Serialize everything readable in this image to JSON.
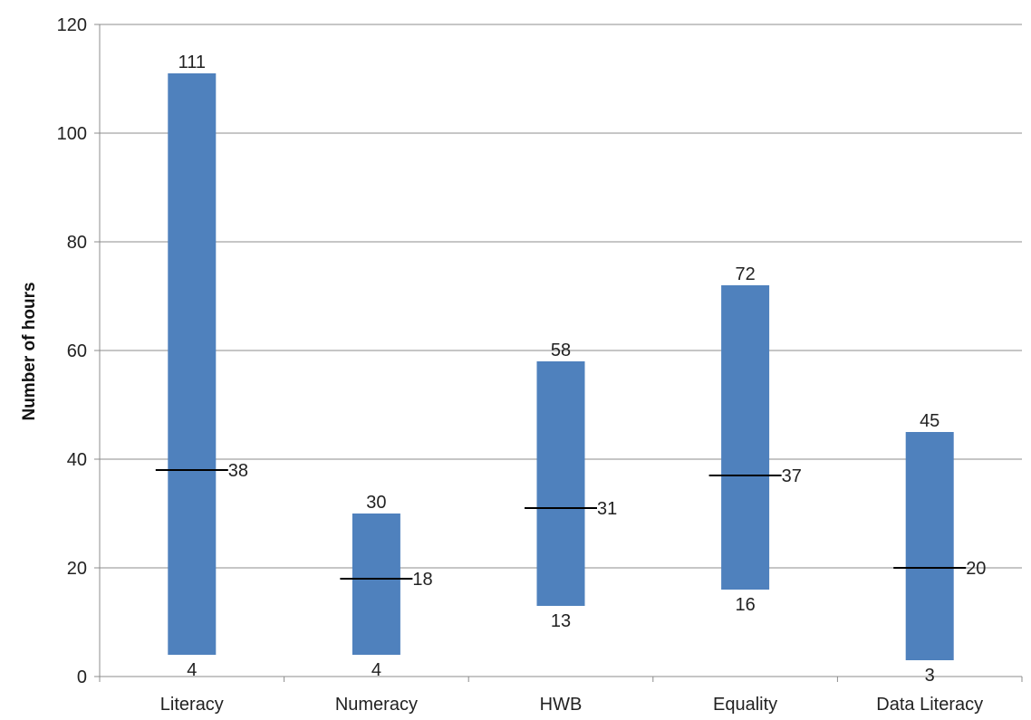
{
  "chart_data": {
    "type": "bar",
    "subtype": "floating-range-with-marker",
    "title": "",
    "xlabel": "",
    "ylabel": "Number of hours",
    "ylim": [
      0,
      120
    ],
    "yticks": [
      0,
      20,
      40,
      60,
      80,
      100,
      120
    ],
    "grid": true,
    "legend": "none",
    "categories": [
      "Literacy",
      "Numeracy",
      "HWB",
      "Equality",
      "Data Literacy"
    ],
    "series": [
      {
        "role": "min",
        "values": [
          4,
          4,
          13,
          16,
          3
        ]
      },
      {
        "role": "max",
        "values": [
          111,
          30,
          58,
          72,
          45
        ]
      },
      {
        "role": "marker",
        "values": [
          38,
          18,
          31,
          37,
          20
        ]
      }
    ],
    "colors": {
      "bar": "#4f81bd",
      "marker": "#000000",
      "grid": "#8c8c8c"
    }
  }
}
